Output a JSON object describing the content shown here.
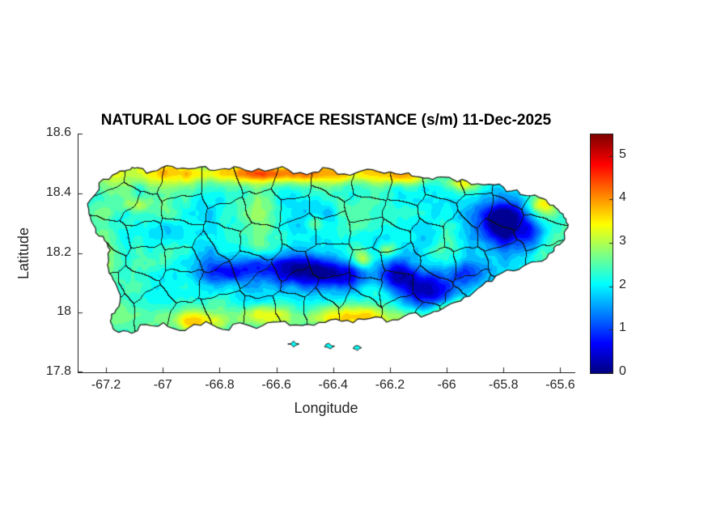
{
  "chart_data": {
    "type": "heatmap",
    "title": "NATURAL LOG OF SURFACE RESISTANCE (s/m) 11-Dec-2025",
    "xlabel": "Longitude",
    "ylabel": "Latitude",
    "xlim": [
      -67.3,
      -65.55
    ],
    "ylim": [
      17.8,
      18.6
    ],
    "x_ticks": [
      -67.2,
      -67,
      -66.8,
      -66.6,
      -66.4,
      -66.2,
      -66,
      -65.8,
      -65.6
    ],
    "x_tick_labels": [
      "-67.2",
      "-67",
      "-66.8",
      "-66.6",
      "-66.4",
      "-66.2",
      "-66",
      "-65.8",
      "-65.6"
    ],
    "y_ticks": [
      17.8,
      18,
      18.2,
      18.4,
      18.6
    ],
    "y_tick_labels": [
      "17.8",
      "18",
      "18.2",
      "18.4",
      "18.6"
    ],
    "colorbar": {
      "min": 0,
      "max": 5.5,
      "ticks": [
        0,
        1,
        2,
        3,
        4,
        5
      ],
      "tick_labels": [
        "0",
        "1",
        "2",
        "3",
        "4",
        "5"
      ],
      "colormap": "jet"
    },
    "region": "Puerto Rico with municipality boundaries",
    "base_value": 2.2,
    "coastline_lonlat": [
      [
        -67.265,
        18.365
      ],
      [
        -67.225,
        18.435
      ],
      [
        -67.16,
        18.468
      ],
      [
        -67.125,
        18.478
      ],
      [
        -67.09,
        18.486
      ],
      [
        -67.02,
        18.476
      ],
      [
        -66.95,
        18.482
      ],
      [
        -66.87,
        18.488
      ],
      [
        -66.8,
        18.48
      ],
      [
        -66.73,
        18.486
      ],
      [
        -66.64,
        18.474
      ],
      [
        -66.56,
        18.48
      ],
      [
        -66.47,
        18.47
      ],
      [
        -66.4,
        18.479
      ],
      [
        -66.32,
        18.468
      ],
      [
        -66.24,
        18.472
      ],
      [
        -66.16,
        18.463
      ],
      [
        -66.11,
        18.456
      ],
      [
        -66.05,
        18.446
      ],
      [
        -65.99,
        18.453
      ],
      [
        -65.93,
        18.441
      ],
      [
        -65.85,
        18.43
      ],
      [
        -65.79,
        18.406
      ],
      [
        -65.72,
        18.392
      ],
      [
        -65.66,
        18.382
      ],
      [
        -65.625,
        18.36
      ],
      [
        -65.59,
        18.33
      ],
      [
        -65.572,
        18.295
      ],
      [
        -65.585,
        18.258
      ],
      [
        -65.615,
        18.225
      ],
      [
        -65.64,
        18.198
      ],
      [
        -65.7,
        18.17
      ],
      [
        -65.765,
        18.14
      ],
      [
        -65.84,
        18.105
      ],
      [
        -65.905,
        18.068
      ],
      [
        -65.97,
        18.035
      ],
      [
        -66.03,
        18.005
      ],
      [
        -66.09,
        17.985
      ],
      [
        -66.17,
        17.976
      ],
      [
        -66.25,
        17.986
      ],
      [
        -66.33,
        17.966
      ],
      [
        -66.41,
        17.976
      ],
      [
        -66.49,
        17.961
      ],
      [
        -66.57,
        17.971
      ],
      [
        -66.65,
        17.956
      ],
      [
        -66.73,
        17.966
      ],
      [
        -66.81,
        17.951
      ],
      [
        -66.89,
        17.961
      ],
      [
        -66.96,
        17.946
      ],
      [
        -67.04,
        17.956
      ],
      [
        -67.11,
        17.931
      ],
      [
        -67.17,
        17.941
      ],
      [
        -67.185,
        17.972
      ],
      [
        -67.165,
        18.01
      ],
      [
        -67.15,
        18.06
      ],
      [
        -67.175,
        18.11
      ],
      [
        -67.195,
        18.16
      ],
      [
        -67.185,
        18.21
      ],
      [
        -67.21,
        18.255
      ],
      [
        -67.245,
        18.295
      ],
      [
        -67.26,
        18.33
      ]
    ],
    "islets_lonlat": [
      [
        [
          -66.56,
          17.895
        ],
        [
          -66.54,
          17.885
        ],
        [
          -66.52,
          17.895
        ],
        [
          -66.54,
          17.905
        ]
      ],
      [
        [
          -66.43,
          17.885
        ],
        [
          -66.41,
          17.878
        ],
        [
          -66.395,
          17.888
        ],
        [
          -66.415,
          17.897
        ]
      ],
      [
        [
          -66.33,
          17.88
        ],
        [
          -66.315,
          17.873
        ],
        [
          -66.3,
          17.882
        ],
        [
          -66.316,
          17.89
        ]
      ]
    ],
    "anomalies_lon_lat_sx_sy_amp": [
      [
        -65.795,
        18.3,
        0.085,
        0.075,
        -2.8
      ],
      [
        -65.7,
        18.258,
        0.05,
        0.05,
        -1.2
      ],
      [
        -66.56,
        18.15,
        0.16,
        0.048,
        -1.7
      ],
      [
        -66.4,
        18.125,
        0.11,
        0.045,
        -1.5
      ],
      [
        -66.77,
        18.135,
        0.09,
        0.04,
        -1.1
      ],
      [
        -66.06,
        18.075,
        0.11,
        0.065,
        -2.0
      ],
      [
        -66.18,
        18.12,
        0.07,
        0.045,
        -1.2
      ],
      [
        -65.93,
        18.14,
        0.07,
        0.05,
        -1.3
      ],
      [
        -66.98,
        18.27,
        0.06,
        0.045,
        -0.7
      ],
      [
        -66.3,
        18.18,
        0.04,
        0.03,
        1.1
      ],
      [
        -66.21,
        18.21,
        0.035,
        0.025,
        0.9
      ],
      [
        -66.47,
        18.3,
        0.035,
        0.025,
        0.7
      ],
      [
        -65.94,
        18.43,
        0.05,
        0.022,
        1.0
      ],
      [
        -66.15,
        18.455,
        0.07,
        0.025,
        0.9
      ],
      [
        -67.09,
        18.36,
        0.045,
        0.028,
        0.8
      ],
      [
        -66.33,
        17.995,
        0.09,
        0.035,
        0.9
      ],
      [
        -66.9,
        17.975,
        0.08,
        0.035,
        0.9
      ],
      [
        -65.98,
        18.01,
        0.05,
        0.035,
        0.8
      ],
      [
        -66.62,
        18.0,
        0.08,
        0.03,
        0.7
      ],
      [
        -65.66,
        18.36,
        0.05,
        0.03,
        1.0
      ],
      [
        -66.6,
        18.465,
        0.6,
        0.038,
        1.25
      ],
      [
        -66.62,
        18.47,
        0.34,
        0.026,
        0.85
      ],
      [
        -66.45,
        17.975,
        0.55,
        0.042,
        0.95
      ],
      [
        -67.205,
        18.17,
        0.045,
        0.2,
        0.65
      ],
      [
        -65.9,
        18.0,
        0.15,
        0.05,
        0.6
      ]
    ],
    "noise": {
      "octaves_freq_amp": [
        [
          6,
          0.45
        ],
        [
          12,
          0.3
        ],
        [
          24,
          0.2
        ],
        [
          48,
          0.13
        ]
      ],
      "scale": 1.7,
      "seed": 11
    },
    "boundaries": {
      "style": "voronoi",
      "municipalities": 78,
      "grid_cols": 13,
      "grid_rows": 6,
      "line_color": "#151515"
    }
  },
  "colors": {
    "axis": "#262626",
    "title": "#000000",
    "background": "#ffffff",
    "coastline": "#151515"
  }
}
